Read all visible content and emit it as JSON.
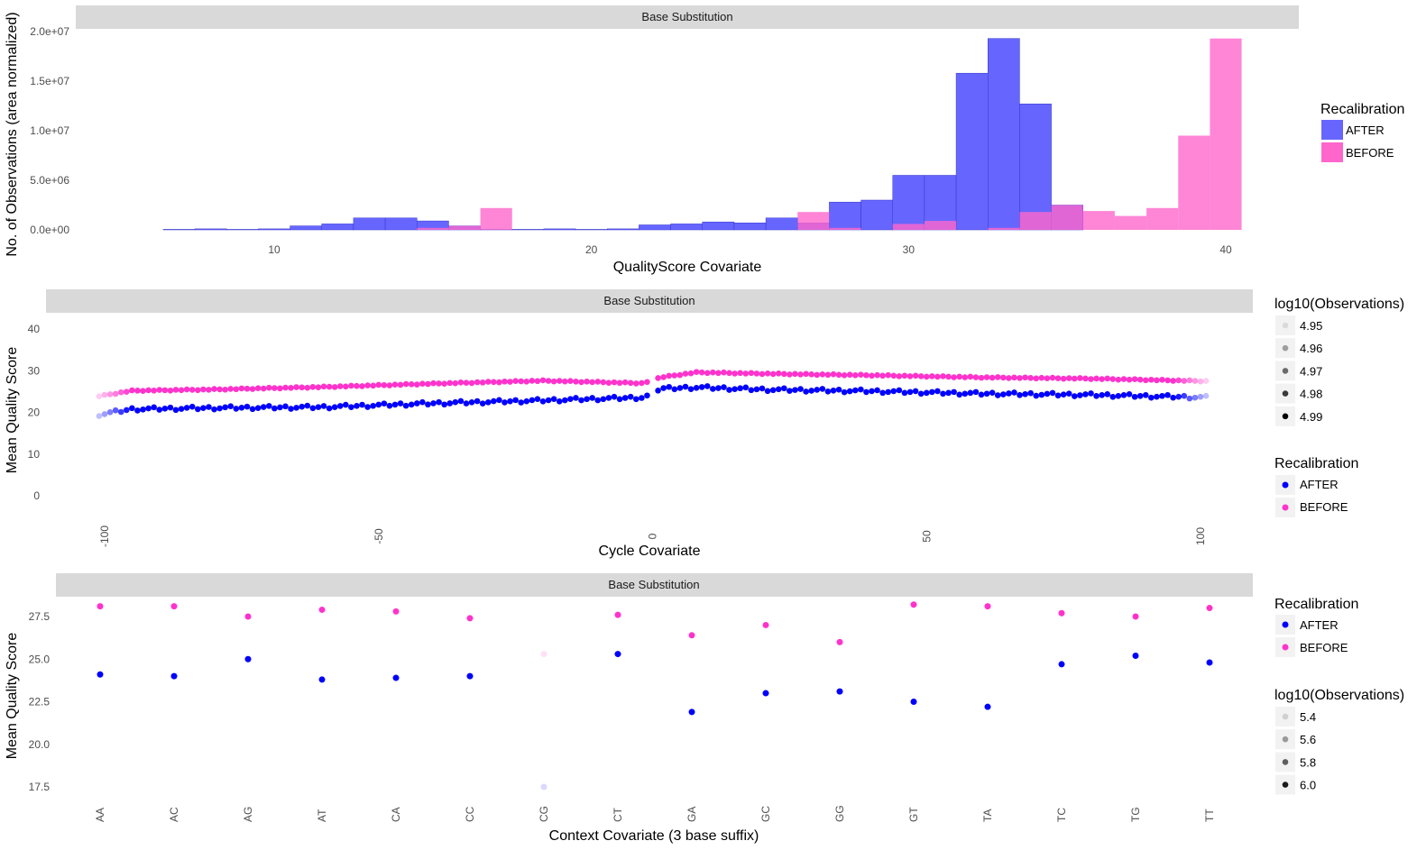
{
  "chart_data": [
    {
      "type": "bar",
      "strip": "Base Substitution",
      "xlabel": "QualityScore Covariate",
      "ylabel": "No. of Observations (area normalized)",
      "xlim": [
        5,
        41
      ],
      "ylim": [
        0,
        20000000
      ],
      "x_ticks": [
        10,
        20,
        30,
        40
      ],
      "y_ticks": [
        0,
        5000000,
        10000000,
        15000000,
        20000000
      ],
      "y_tick_labels": [
        "0.0e+00",
        "5.0e+06",
        "1.0e+07",
        "1.5e+07",
        "2.0e+07"
      ],
      "legend": {
        "title": "Recalibration",
        "position": "right"
      },
      "series": [
        {
          "name": "AFTER",
          "color": "#6666FF",
          "bins": [
            [
              7,
              50000.0
            ],
            [
              8,
              100000.0
            ],
            [
              9,
              50000.0
            ],
            [
              10,
              100000.0
            ],
            [
              11,
              400000.0
            ],
            [
              12,
              600000.0
            ],
            [
              13,
              1200000.0
            ],
            [
              14,
              1200000.0
            ],
            [
              15,
              900000.0
            ],
            [
              16,
              400000.0
            ],
            [
              17,
              50000.0
            ],
            [
              18,
              50000.0
            ],
            [
              19,
              100000.0
            ],
            [
              20,
              50000.0
            ],
            [
              21,
              100000.0
            ],
            [
              22,
              500000.0
            ],
            [
              23,
              600000.0
            ],
            [
              24,
              800000.0
            ],
            [
              25,
              700000.0
            ],
            [
              26,
              1200000.0
            ],
            [
              27,
              700000.0
            ],
            [
              28,
              2800000.0
            ],
            [
              29,
              3000000.0
            ],
            [
              30,
              5500000.0
            ],
            [
              31,
              5500000.0
            ],
            [
              32,
              15800000.0
            ],
            [
              33,
              19300000.0
            ],
            [
              34,
              12700000.0
            ],
            [
              35,
              2500000.0
            ]
          ]
        },
        {
          "name": "BEFORE",
          "color": "#FF66CC",
          "bins": [
            [
              15,
              200000.0
            ],
            [
              16,
              400000.0
            ],
            [
              17,
              2200000.0
            ],
            [
              27,
              1800000.0
            ],
            [
              28,
              200000.0
            ],
            [
              30,
              600000.0
            ],
            [
              31,
              900000.0
            ],
            [
              33,
              200000.0
            ],
            [
              34,
              1800000.0
            ],
            [
              35,
              2500000.0
            ],
            [
              36,
              1900000.0
            ],
            [
              37,
              1400000.0
            ],
            [
              38,
              2200000.0
            ],
            [
              39,
              9500000.0
            ],
            [
              40,
              19300000.0
            ]
          ]
        }
      ]
    },
    {
      "type": "scatter",
      "strip": "Base Substitution",
      "xlabel": "Cycle Covariate",
      "ylabel": "Mean Quality Score",
      "xlim": [
        -105,
        105
      ],
      "ylim": [
        0,
        42
      ],
      "x_ticks": [
        -100,
        -50,
        0,
        50,
        100
      ],
      "y_ticks": [
        0,
        10,
        20,
        30,
        40
      ],
      "legends": [
        {
          "title": "log10(Observations)",
          "labels": [
            "4.95",
            "4.96",
            "4.97",
            "4.98",
            "4.99"
          ]
        },
        {
          "title": "Recalibration",
          "labels": [
            "AFTER",
            "BEFORE"
          ]
        }
      ],
      "series": [
        {
          "name": "AFTER",
          "color": "#0000FF",
          "x_range": [
            -101,
            101
          ],
          "y_profile": [
            [
              -101,
              20.2
            ],
            [
              -95,
              21.5
            ],
            [
              -80,
              21.8
            ],
            [
              -60,
              22.0
            ],
            [
              -40,
              22.9
            ],
            [
              -20,
              23.6
            ],
            [
              -2,
              24.3
            ],
            [
              2,
              25.7
            ],
            [
              8,
              26.0
            ],
            [
              20,
              25.5
            ],
            [
              40,
              25.1
            ],
            [
              60,
              24.5
            ],
            [
              80,
              24.2
            ],
            [
              101,
              23.6
            ]
          ]
        },
        {
          "name": "BEFORE",
          "color": "#FF33CC",
          "x_range": [
            -101,
            101
          ],
          "y_profile": [
            [
              -101,
              24.1
            ],
            [
              -95,
              25.4
            ],
            [
              -80,
              25.7
            ],
            [
              -60,
              26.3
            ],
            [
              -40,
              27.1
            ],
            [
              -20,
              27.8
            ],
            [
              -2,
              27.2
            ],
            [
              2,
              28.5
            ],
            [
              8,
              29.6
            ],
            [
              20,
              29.3
            ],
            [
              40,
              28.9
            ],
            [
              60,
              28.4
            ],
            [
              80,
              28.1
            ],
            [
              101,
              27.5
            ]
          ]
        }
      ]
    },
    {
      "type": "scatter",
      "strip": "Base Substitution",
      "xlabel": "Context Covariate (3 base suffix)",
      "ylabel": "Mean Quality Score",
      "categories": [
        "AA",
        "AC",
        "AG",
        "AT",
        "CA",
        "CC",
        "CG",
        "CT",
        "GA",
        "GC",
        "GG",
        "GT",
        "TA",
        "TC",
        "TG",
        "TT"
      ],
      "ylim": [
        16.8,
        28.6
      ],
      "y_ticks": [
        17.5,
        20.0,
        22.5,
        25.0,
        27.5
      ],
      "y_tick_labels": [
        "17.5",
        "20.0",
        "22.5",
        "25.0",
        "27.5"
      ],
      "legends": [
        {
          "title": "Recalibration",
          "labels": [
            "AFTER",
            "BEFORE"
          ]
        },
        {
          "title": "log10(Observations)",
          "labels": [
            "5.4",
            "5.6",
            "5.8",
            "6.0"
          ]
        }
      ],
      "series": [
        {
          "name": "AFTER",
          "color": "#0000FF",
          "values": [
            24.1,
            24.0,
            25.0,
            23.8,
            23.9,
            24.0,
            17.5,
            25.3,
            21.9,
            23.0,
            23.1,
            22.5,
            22.2,
            24.7,
            25.2,
            24.8
          ],
          "alpha": [
            1,
            1,
            1,
            1,
            1,
            1,
            0.15,
            1,
            1,
            1,
            1,
            1,
            1,
            1,
            1,
            1
          ]
        },
        {
          "name": "BEFORE",
          "color": "#FF33CC",
          "values": [
            28.1,
            28.1,
            27.5,
            27.9,
            27.8,
            27.4,
            25.3,
            27.6,
            26.4,
            27.0,
            26.0,
            28.2,
            28.1,
            27.7,
            27.5,
            28.0
          ],
          "alpha": [
            1,
            1,
            1,
            1,
            1,
            1,
            0.15,
            1,
            1,
            1,
            1,
            1,
            1,
            1,
            1,
            1
          ]
        }
      ]
    }
  ]
}
